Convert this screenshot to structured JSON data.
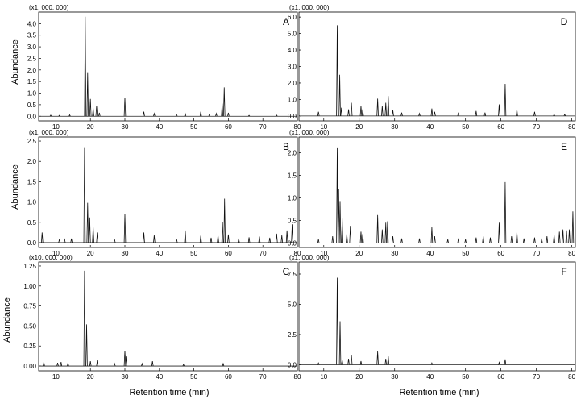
{
  "figure": {
    "y_axis_label": "Abundance",
    "x_axis_label": "Retention time (min)"
  },
  "chart_data": [
    {
      "type": "line",
      "panel": "A",
      "multiplier": "(x1, 000, 000)",
      "xlim": [
        5,
        80
      ],
      "ylim": [
        -0.2,
        4.5
      ],
      "xticks": [
        10,
        20,
        30,
        40,
        50,
        60,
        70,
        80
      ],
      "xtick_labels": [
        "10",
        "20",
        "30",
        "40",
        "50",
        "60",
        "70",
        "80"
      ],
      "yticks": [
        0.0,
        0.5,
        1.0,
        1.5,
        2.0,
        2.5,
        3.0,
        3.5,
        4.0
      ],
      "ytick_labels": [
        "0.0",
        "0.5",
        "1.0",
        "1.5",
        "2.0",
        "2.5",
        "3.0",
        "3.5",
        "4.0"
      ],
      "peaks": [
        {
          "x": 8.5,
          "y": 0.05
        },
        {
          "x": 11,
          "y": 0.04
        },
        {
          "x": 14,
          "y": 0.06
        },
        {
          "x": 18.5,
          "y": 4.3
        },
        {
          "x": 19.2,
          "y": 1.9
        },
        {
          "x": 20.0,
          "y": 0.75
        },
        {
          "x": 20.8,
          "y": 0.35
        },
        {
          "x": 21.8,
          "y": 0.45
        },
        {
          "x": 22.6,
          "y": 0.15
        },
        {
          "x": 30.0,
          "y": 0.8
        },
        {
          "x": 35.5,
          "y": 0.2
        },
        {
          "x": 38.5,
          "y": 0.12
        },
        {
          "x": 45.0,
          "y": 0.07
        },
        {
          "x": 47.5,
          "y": 0.12
        },
        {
          "x": 52.0,
          "y": 0.2
        },
        {
          "x": 54.5,
          "y": 0.08
        },
        {
          "x": 56.5,
          "y": 0.12
        },
        {
          "x": 58.2,
          "y": 0.55
        },
        {
          "x": 58.8,
          "y": 1.25
        },
        {
          "x": 60.0,
          "y": 0.15
        },
        {
          "x": 66.0,
          "y": 0.04
        },
        {
          "x": 74.0,
          "y": 0.05
        }
      ]
    },
    {
      "type": "line",
      "panel": "B",
      "multiplier": "(x1, 000, 000)",
      "xlim": [
        5,
        80
      ],
      "ylim": [
        -0.12,
        2.6
      ],
      "xticks": [
        10,
        20,
        30,
        40,
        50,
        60,
        70,
        80
      ],
      "xtick_labels": [
        "10",
        "20",
        "30",
        "40",
        "50",
        "60",
        "70",
        "80"
      ],
      "yticks": [
        0.0,
        0.5,
        1.0,
        1.5,
        2.0,
        2.5
      ],
      "ytick_labels": [
        "0.0",
        "0.5",
        "1.0",
        "1.5",
        "2.0",
        "2.5"
      ],
      "peaks": [
        {
          "x": 6.0,
          "y": 0.25
        },
        {
          "x": 11.0,
          "y": 0.08
        },
        {
          "x": 12.5,
          "y": 0.1
        },
        {
          "x": 14.5,
          "y": 0.1
        },
        {
          "x": 18.3,
          "y": 2.35
        },
        {
          "x": 19.2,
          "y": 0.98
        },
        {
          "x": 19.8,
          "y": 0.62
        },
        {
          "x": 20.8,
          "y": 0.38
        },
        {
          "x": 22.0,
          "y": 0.25
        },
        {
          "x": 27.0,
          "y": 0.08
        },
        {
          "x": 30.0,
          "y": 0.7
        },
        {
          "x": 35.5,
          "y": 0.25
        },
        {
          "x": 38.5,
          "y": 0.18
        },
        {
          "x": 45.0,
          "y": 0.08
        },
        {
          "x": 47.5,
          "y": 0.3
        },
        {
          "x": 52.0,
          "y": 0.17
        },
        {
          "x": 55.0,
          "y": 0.12
        },
        {
          "x": 57.0,
          "y": 0.18
        },
        {
          "x": 58.3,
          "y": 0.5
        },
        {
          "x": 58.9,
          "y": 1.08
        },
        {
          "x": 60.0,
          "y": 0.2
        },
        {
          "x": 63.0,
          "y": 0.1
        },
        {
          "x": 66.0,
          "y": 0.13
        },
        {
          "x": 69.0,
          "y": 0.15
        },
        {
          "x": 72.0,
          "y": 0.12
        },
        {
          "x": 74.0,
          "y": 0.22
        },
        {
          "x": 75.5,
          "y": 0.18
        },
        {
          "x": 77.0,
          "y": 0.3
        },
        {
          "x": 78.5,
          "y": 0.45
        }
      ]
    },
    {
      "type": "line",
      "panel": "C",
      "multiplier": "(x10, 000, 000)",
      "xlim": [
        5,
        80
      ],
      "ylim": [
        -0.06,
        1.3
      ],
      "xticks": [
        10,
        20,
        30,
        40,
        50,
        60,
        70,
        80
      ],
      "xtick_labels": [
        "10",
        "20",
        "30",
        "40",
        "50",
        "60",
        "70",
        "80"
      ],
      "yticks": [
        0.0,
        0.25,
        0.5,
        0.75,
        1.0,
        1.25
      ],
      "ytick_labels": [
        "0.00",
        "0.25",
        "0.50",
        "0.75",
        "1.00",
        "1.25"
      ],
      "peaks": [
        {
          "x": 6.5,
          "y": 0.05
        },
        {
          "x": 10.5,
          "y": 0.04
        },
        {
          "x": 11.5,
          "y": 0.05
        },
        {
          "x": 13.5,
          "y": 0.04
        },
        {
          "x": 18.3,
          "y": 1.19
        },
        {
          "x": 18.9,
          "y": 0.52
        },
        {
          "x": 20.0,
          "y": 0.06
        },
        {
          "x": 22.0,
          "y": 0.07
        },
        {
          "x": 27.0,
          "y": 0.03
        },
        {
          "x": 30.0,
          "y": 0.19
        },
        {
          "x": 30.4,
          "y": 0.12
        },
        {
          "x": 35.0,
          "y": 0.03
        },
        {
          "x": 38.0,
          "y": 0.06
        },
        {
          "x": 47.0,
          "y": 0.02
        },
        {
          "x": 58.5,
          "y": 0.03
        }
      ]
    },
    {
      "type": "line",
      "panel": "D",
      "multiplier": "(x1, 000, 000)",
      "xlim": [
        3,
        81
      ],
      "ylim": [
        -0.3,
        6.3
      ],
      "xticks": [
        10,
        20,
        30,
        40,
        50,
        60,
        70,
        80
      ],
      "xtick_labels": [
        "10",
        "20",
        "30",
        "40",
        "50",
        "60",
        "70",
        "80"
      ],
      "yticks": [
        0.0,
        1.0,
        2.0,
        3.0,
        4.0,
        5.0,
        6.0
      ],
      "ytick_labels": [
        "0.0",
        "1.0",
        "2.0",
        "3.0",
        "4.0",
        "5.0",
        "6.0"
      ],
      "peaks": [
        {
          "x": 8.5,
          "y": 0.25
        },
        {
          "x": 13.8,
          "y": 5.5
        },
        {
          "x": 14.5,
          "y": 2.5
        },
        {
          "x": 15.0,
          "y": 0.5
        },
        {
          "x": 17.0,
          "y": 0.4
        },
        {
          "x": 17.8,
          "y": 0.8
        },
        {
          "x": 20.5,
          "y": 0.6
        },
        {
          "x": 21.0,
          "y": 0.4
        },
        {
          "x": 25.2,
          "y": 1.05
        },
        {
          "x": 26.5,
          "y": 0.6
        },
        {
          "x": 27.5,
          "y": 0.8
        },
        {
          "x": 28.2,
          "y": 1.2
        },
        {
          "x": 29.5,
          "y": 0.35
        },
        {
          "x": 32.0,
          "y": 0.2
        },
        {
          "x": 37.0,
          "y": 0.15
        },
        {
          "x": 40.5,
          "y": 0.45
        },
        {
          "x": 41.3,
          "y": 0.25
        },
        {
          "x": 48.0,
          "y": 0.2
        },
        {
          "x": 53.0,
          "y": 0.3
        },
        {
          "x": 55.5,
          "y": 0.2
        },
        {
          "x": 59.5,
          "y": 0.7
        },
        {
          "x": 61.2,
          "y": 1.95
        },
        {
          "x": 64.5,
          "y": 0.4
        },
        {
          "x": 69.5,
          "y": 0.25
        },
        {
          "x": 75.0,
          "y": 0.1
        },
        {
          "x": 78.0,
          "y": 0.1
        }
      ]
    },
    {
      "type": "line",
      "panel": "E",
      "multiplier": "(x1, 000, 000)",
      "xlim": [
        3,
        81
      ],
      "ylim": [
        -0.1,
        2.35
      ],
      "xticks": [
        10,
        20,
        30,
        40,
        50,
        60,
        70,
        80
      ],
      "xtick_labels": [
        "10",
        "20",
        "30",
        "40",
        "50",
        "60",
        "70",
        "80"
      ],
      "yticks": [
        0.0,
        0.5,
        1.0,
        1.5,
        2.0
      ],
      "ytick_labels": [
        "0.0",
        "0.5",
        "1.0",
        "1.5",
        "2.0"
      ],
      "peaks": [
        {
          "x": 8.5,
          "y": 0.08
        },
        {
          "x": 12.5,
          "y": 0.15
        },
        {
          "x": 13.8,
          "y": 2.12
        },
        {
          "x": 14.2,
          "y": 1.2
        },
        {
          "x": 14.6,
          "y": 0.93
        },
        {
          "x": 15.2,
          "y": 0.55
        },
        {
          "x": 16.5,
          "y": 0.2
        },
        {
          "x": 17.5,
          "y": 0.38
        },
        {
          "x": 20.5,
          "y": 0.25
        },
        {
          "x": 21.0,
          "y": 0.2
        },
        {
          "x": 25.2,
          "y": 0.62
        },
        {
          "x": 26.5,
          "y": 0.3
        },
        {
          "x": 27.5,
          "y": 0.45
        },
        {
          "x": 28.0,
          "y": 0.48
        },
        {
          "x": 29.5,
          "y": 0.15
        },
        {
          "x": 32.0,
          "y": 0.1
        },
        {
          "x": 37.0,
          "y": 0.1
        },
        {
          "x": 40.5,
          "y": 0.35
        },
        {
          "x": 41.3,
          "y": 0.15
        },
        {
          "x": 45.0,
          "y": 0.08
        },
        {
          "x": 48.0,
          "y": 0.1
        },
        {
          "x": 50.0,
          "y": 0.08
        },
        {
          "x": 53.0,
          "y": 0.12
        },
        {
          "x": 55.0,
          "y": 0.15
        },
        {
          "x": 57.0,
          "y": 0.12
        },
        {
          "x": 59.5,
          "y": 0.45
        },
        {
          "x": 61.2,
          "y": 1.35
        },
        {
          "x": 63.0,
          "y": 0.15
        },
        {
          "x": 64.5,
          "y": 0.25
        },
        {
          "x": 66.5,
          "y": 0.1
        },
        {
          "x": 69.5,
          "y": 0.12
        },
        {
          "x": 71.5,
          "y": 0.1
        },
        {
          "x": 73.0,
          "y": 0.15
        },
        {
          "x": 75.0,
          "y": 0.18
        },
        {
          "x": 76.5,
          "y": 0.25
        },
        {
          "x": 77.5,
          "y": 0.3
        },
        {
          "x": 78.5,
          "y": 0.28
        },
        {
          "x": 79.3,
          "y": 0.3
        },
        {
          "x": 80.3,
          "y": 0.7
        }
      ]
    },
    {
      "type": "line",
      "panel": "F",
      "multiplier": "(x1, 000, 000)",
      "xlim": [
        3,
        81
      ],
      "ylim": [
        -0.5,
        8.5
      ],
      "xticks": [
        10,
        20,
        30,
        40,
        50,
        60,
        70,
        80
      ],
      "xtick_labels": [
        "10",
        "20",
        "30",
        "40",
        "50",
        "60",
        "70",
        "80"
      ],
      "yticks": [
        0.0,
        2.5,
        5.0,
        7.5
      ],
      "ytick_labels": [
        "0.0",
        "2.5",
        "5.0",
        "7.5"
      ],
      "peaks": [
        {
          "x": 8.5,
          "y": 0.15
        },
        {
          "x": 13.8,
          "y": 7.2
        },
        {
          "x": 14.6,
          "y": 3.6
        },
        {
          "x": 15.2,
          "y": 0.4
        },
        {
          "x": 17.0,
          "y": 0.5
        },
        {
          "x": 17.8,
          "y": 0.8
        },
        {
          "x": 20.5,
          "y": 0.3
        },
        {
          "x": 25.2,
          "y": 1.1
        },
        {
          "x": 27.5,
          "y": 0.5
        },
        {
          "x": 28.2,
          "y": 0.7
        },
        {
          "x": 40.5,
          "y": 0.15
        },
        {
          "x": 59.5,
          "y": 0.2
        },
        {
          "x": 61.2,
          "y": 0.45
        }
      ]
    }
  ]
}
